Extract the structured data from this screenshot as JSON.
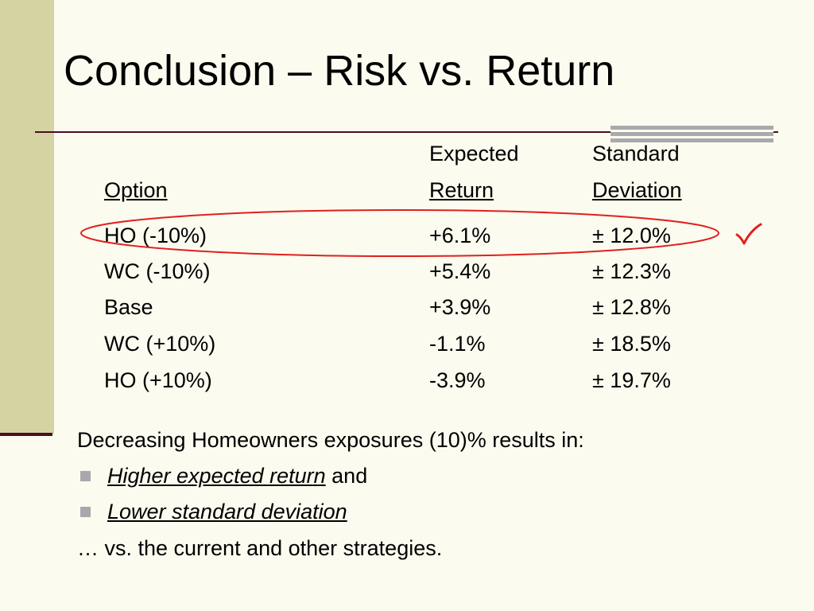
{
  "slide": {
    "title": "Conclusion – Risk vs. Return"
  },
  "table": {
    "headers": {
      "option": "Option",
      "expected_return_line1": "Expected",
      "expected_return_line2": "Return",
      "std_dev_line1": "Standard",
      "std_dev_line2": "Deviation"
    },
    "rows": [
      {
        "option": "HO (-10%)",
        "expected_return": "+6.1%",
        "std_dev": "± 12.0%"
      },
      {
        "option": "WC (-10%)",
        "expected_return": "+5.4%",
        "std_dev": "± 12.3%"
      },
      {
        "option": "Base",
        "expected_return": "+3.9%",
        "std_dev": "± 12.8%"
      },
      {
        "option": "WC (+10%)",
        "expected_return": "-1.1%",
        "std_dev": "± 18.5%"
      },
      {
        "option": "HO (+10%)",
        "expected_return": "-3.9%",
        "std_dev": "± 19.7%"
      }
    ],
    "highlighted_row": 0,
    "highlight_color": "#E0201E",
    "checkmark_color": "#E0201E",
    "checkmark_icon": "checkmark-icon"
  },
  "conclusion": {
    "intro": "Decreasing Homeowners exposures (10)% results in:",
    "bullets": [
      {
        "emphasis": "Higher expected return",
        "rest": " and"
      },
      {
        "emphasis": "Lower standard deviation",
        "rest": ""
      }
    ],
    "closing": "… vs. the current and other strategies."
  },
  "colors": {
    "background": "#FBFBEF",
    "side_bar": "#D6D3A3",
    "accent_line": "#4A0F22",
    "grey_block": "#A9A9AE",
    "bullet": "#A8A8AC"
  }
}
